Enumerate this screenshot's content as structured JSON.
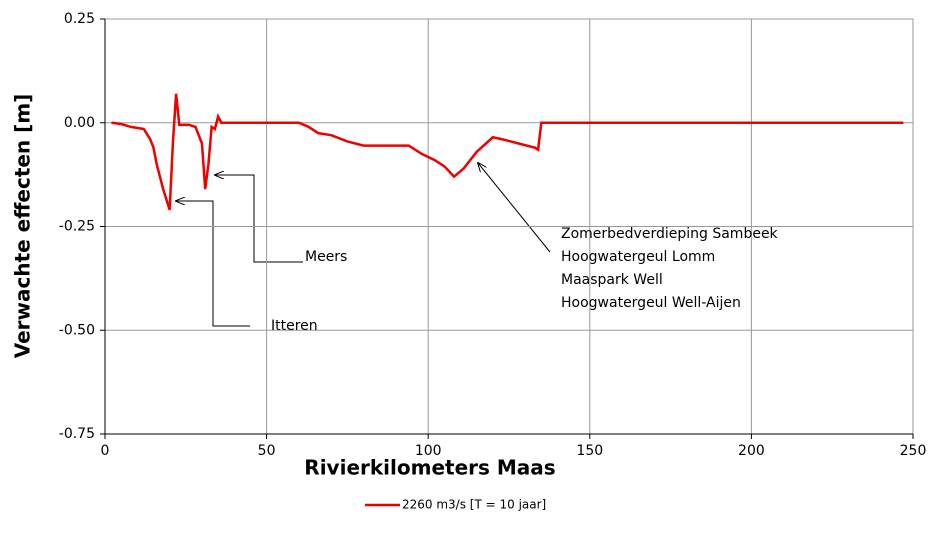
{
  "chart_data": {
    "type": "line",
    "xlabel": "Rivierkilometers Maas",
    "ylabel": "Verwachte effecten [m]",
    "xlim": [
      0,
      250
    ],
    "xticks": [
      0,
      50,
      100,
      150,
      200,
      250
    ],
    "ylim": [
      -0.75,
      0.25
    ],
    "yticks": [
      0.25,
      {
        "value": 0,
        "label": "0.00"
      },
      -0.25,
      {
        "value": -0.5,
        "label": "-0.50"
      },
      -0.75
    ],
    "grid": true,
    "legend": "bottom",
    "x": [
      2,
      5,
      8,
      12,
      14,
      15,
      16,
      18,
      20,
      21,
      22,
      23,
      26,
      28,
      30,
      31,
      32,
      33,
      34,
      35,
      36,
      60,
      63,
      66,
      70,
      75,
      80,
      94,
      98,
      102,
      105,
      108,
      111,
      115,
      120,
      123,
      128,
      133,
      134,
      135,
      247
    ],
    "series": [
      {
        "name": "2260 m3/s [T = 10 jaar]",
        "color": "#ee0000",
        "values": [
          0,
          -0.003,
          -0.01,
          -0.015,
          -0.04,
          -0.06,
          -0.1,
          -0.16,
          -0.21,
          -0.05,
          0.07,
          -0.005,
          -0.005,
          -0.01,
          -0.05,
          -0.16,
          -0.1,
          -0.01,
          -0.015,
          0.015,
          0,
          0,
          -0.01,
          -0.025,
          -0.03,
          -0.045,
          -0.055,
          -0.055,
          -0.075,
          -0.09,
          -0.105,
          -0.13,
          -0.11,
          -0.07,
          -0.035,
          -0.04,
          -0.05,
          -0.06,
          -0.065,
          0,
          0
        ]
      }
    ],
    "annotations": [
      {
        "text": [
          "Meers"
        ]
      },
      {
        "text": [
          "Itteren"
        ]
      },
      {
        "text": [
          "Zomerbedverdieping Sambeek",
          "Hoogwatergeul Lomm",
          "Maaspark Well",
          "Hoogwatergeul Well-Aijen"
        ]
      }
    ]
  }
}
